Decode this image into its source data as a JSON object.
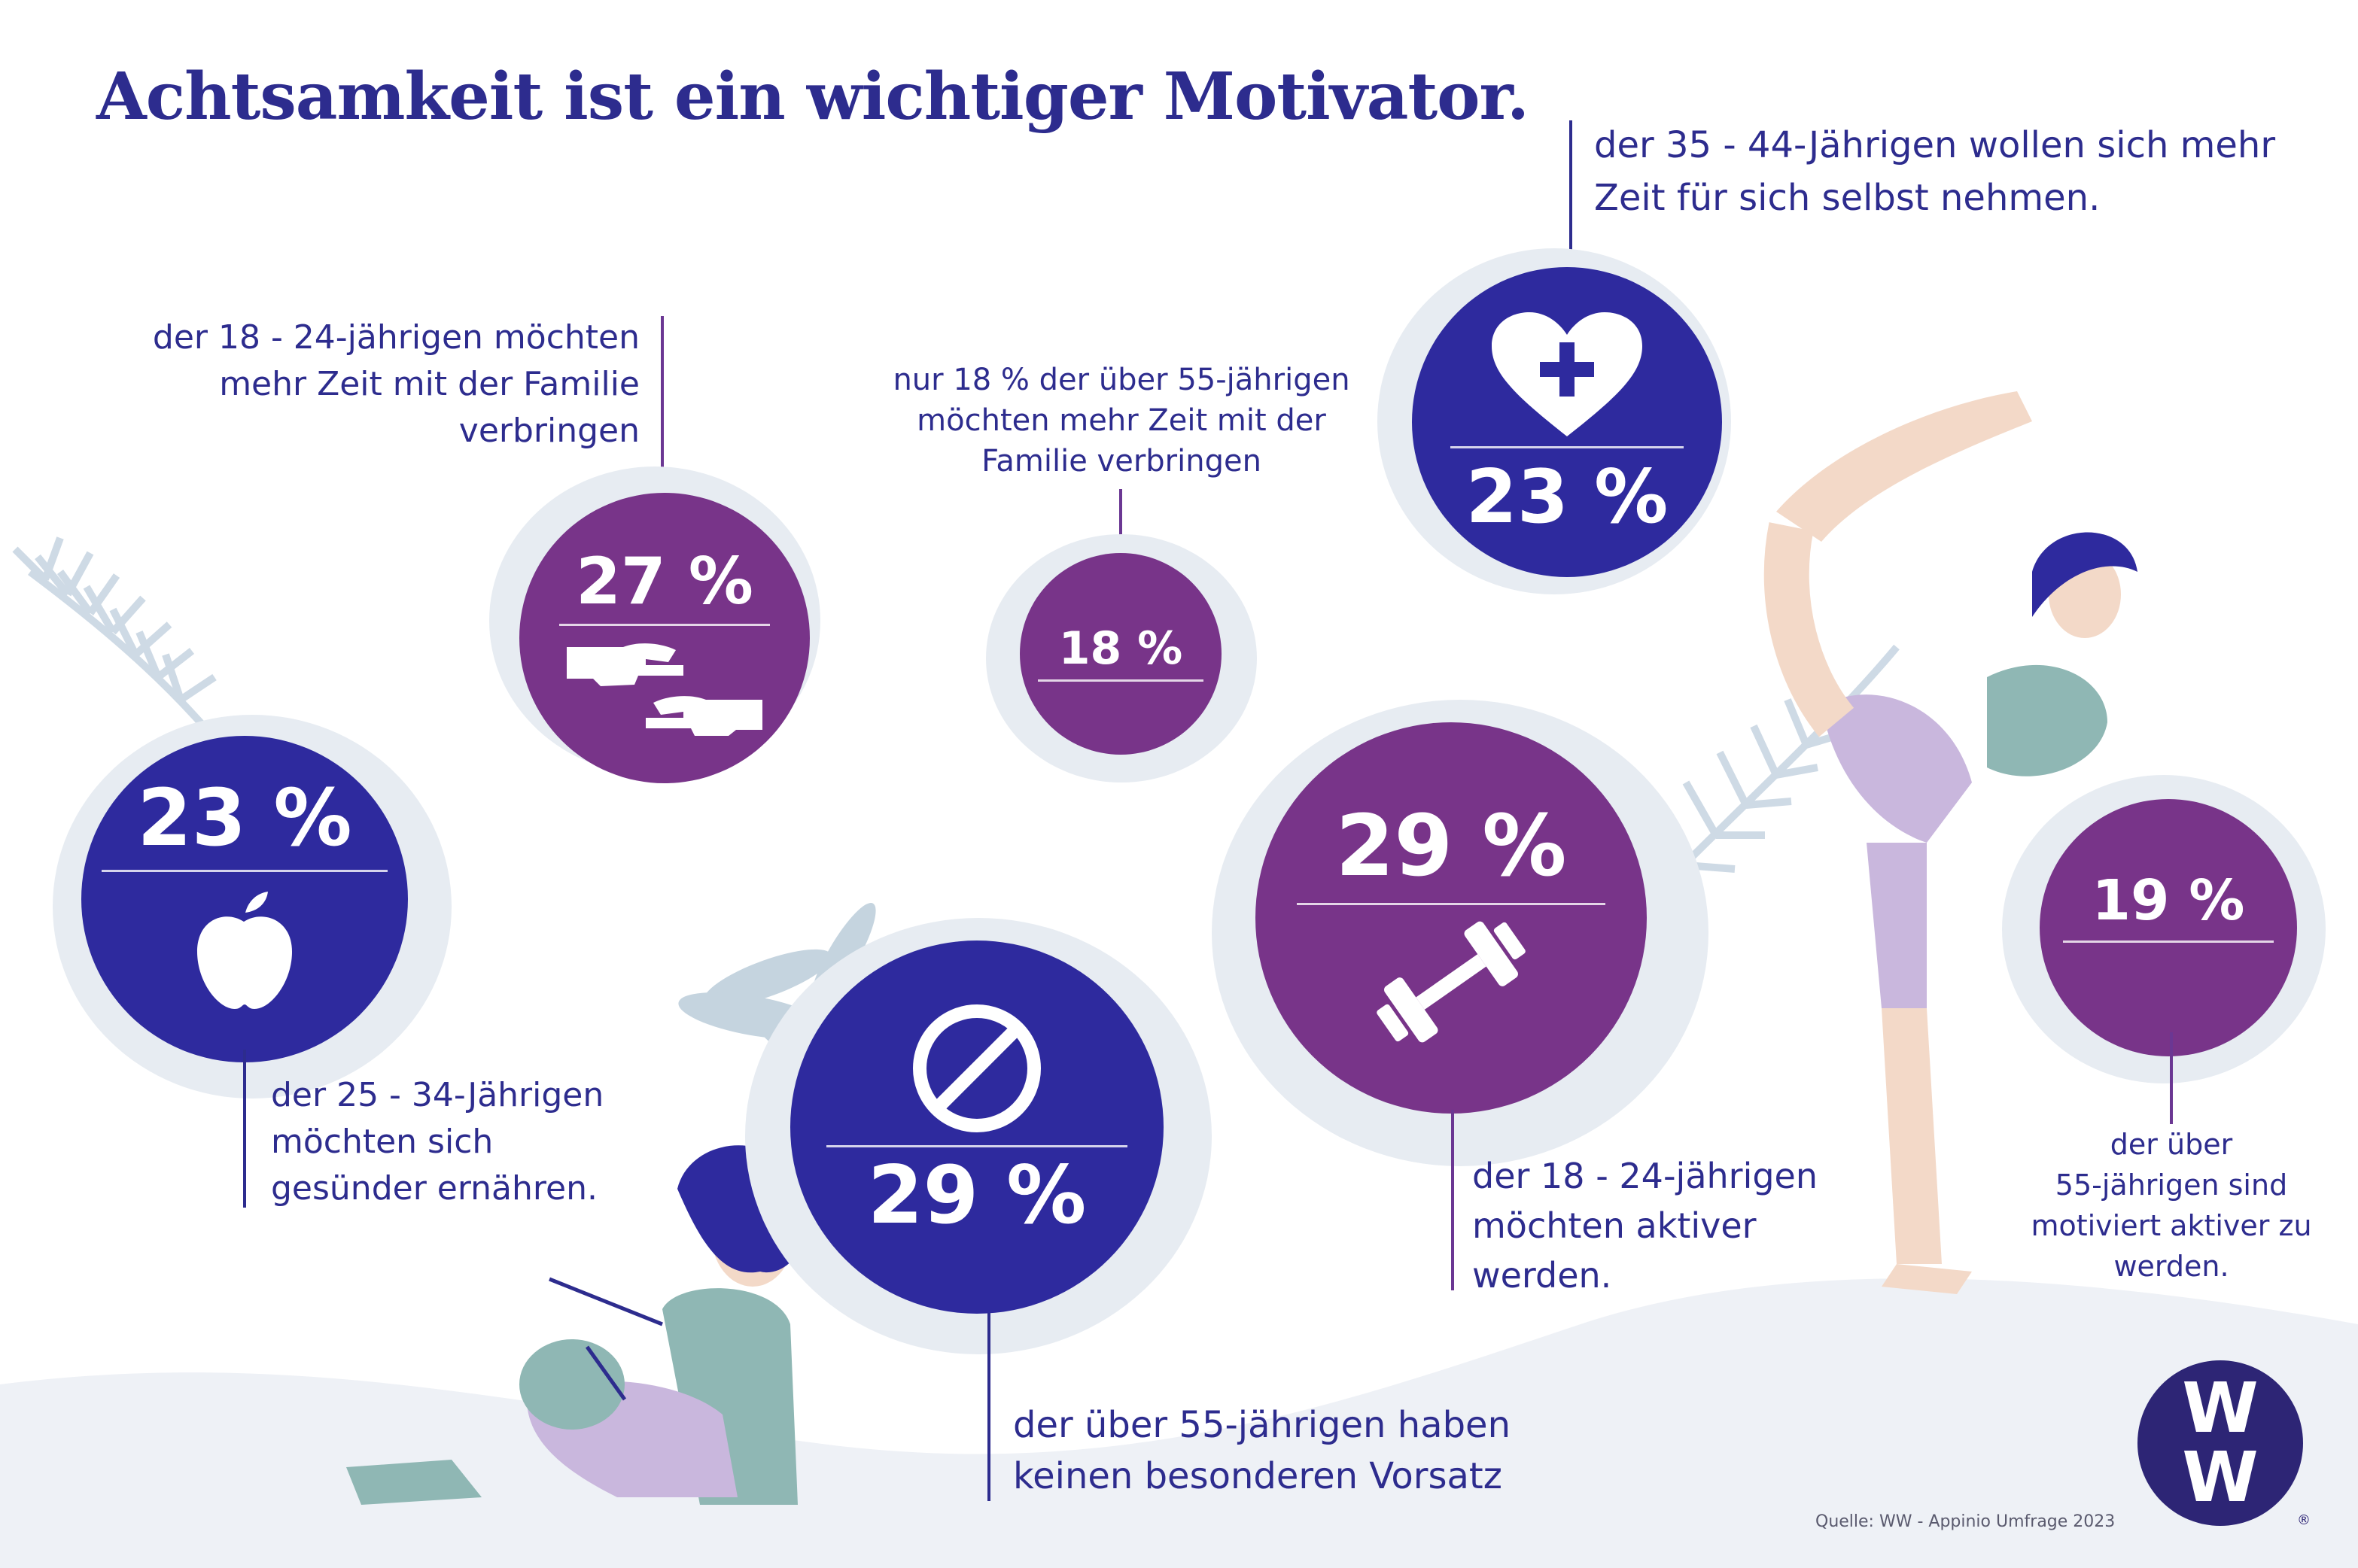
{
  "title": "Achtsamkeit ist ein wichtiger Motivator.",
  "stats": {
    "familie_18_24": {
      "value": "27 %",
      "text_lines": [
        "der 18 - 24-jährigen möchten",
        "mehr Zeit mit der Familie",
        "verbringen"
      ],
      "icon": "hands-icon"
    },
    "familie_55": {
      "value": "18 %",
      "text_lines": [
        "nur 18 % der über 55-jährigen",
        "möchten mehr Zeit mit der",
        "Familie verbringen"
      ]
    },
    "selbst_35_44": {
      "value": "23 %",
      "text_lines": [
        "der 35 - 44-Jährigen wollen sich mehr",
        "Zeit für sich selbst nehmen."
      ],
      "icon": "heart-plus-icon"
    },
    "ernaehren_25_34": {
      "value": "23 %",
      "text_lines": [
        "der 25 - 34-Jährigen",
        "möchten sich",
        "gesünder ernähren."
      ],
      "icon": "apple-icon"
    },
    "vorsatz_55": {
      "value": "29 %",
      "text_lines": [
        "der über 55-jährigen haben",
        "keinen besonderen Vorsatz"
      ],
      "icon": "prohibited-icon"
    },
    "aktiv_18_24": {
      "value": "29 %",
      "text_lines": [
        "der 18 - 24-jährigen",
        "möchten aktiver",
        "werden."
      ],
      "icon": "dumbbell-icon"
    },
    "aktiv_55": {
      "value": "19 %",
      "text_lines": [
        "der über",
        "55-jährigen sind",
        "motiviert aktiver zu",
        "werden."
      ]
    }
  },
  "source": "Quelle: WW - Appinio Umfrage 2023",
  "logo": {
    "line1": "W",
    "line2": "W",
    "reg": "®"
  },
  "colors": {
    "blue": "#2e2a9e",
    "purple": "#783489",
    "text": "#2d2c8e",
    "background_shape": "#e7ecf2"
  }
}
